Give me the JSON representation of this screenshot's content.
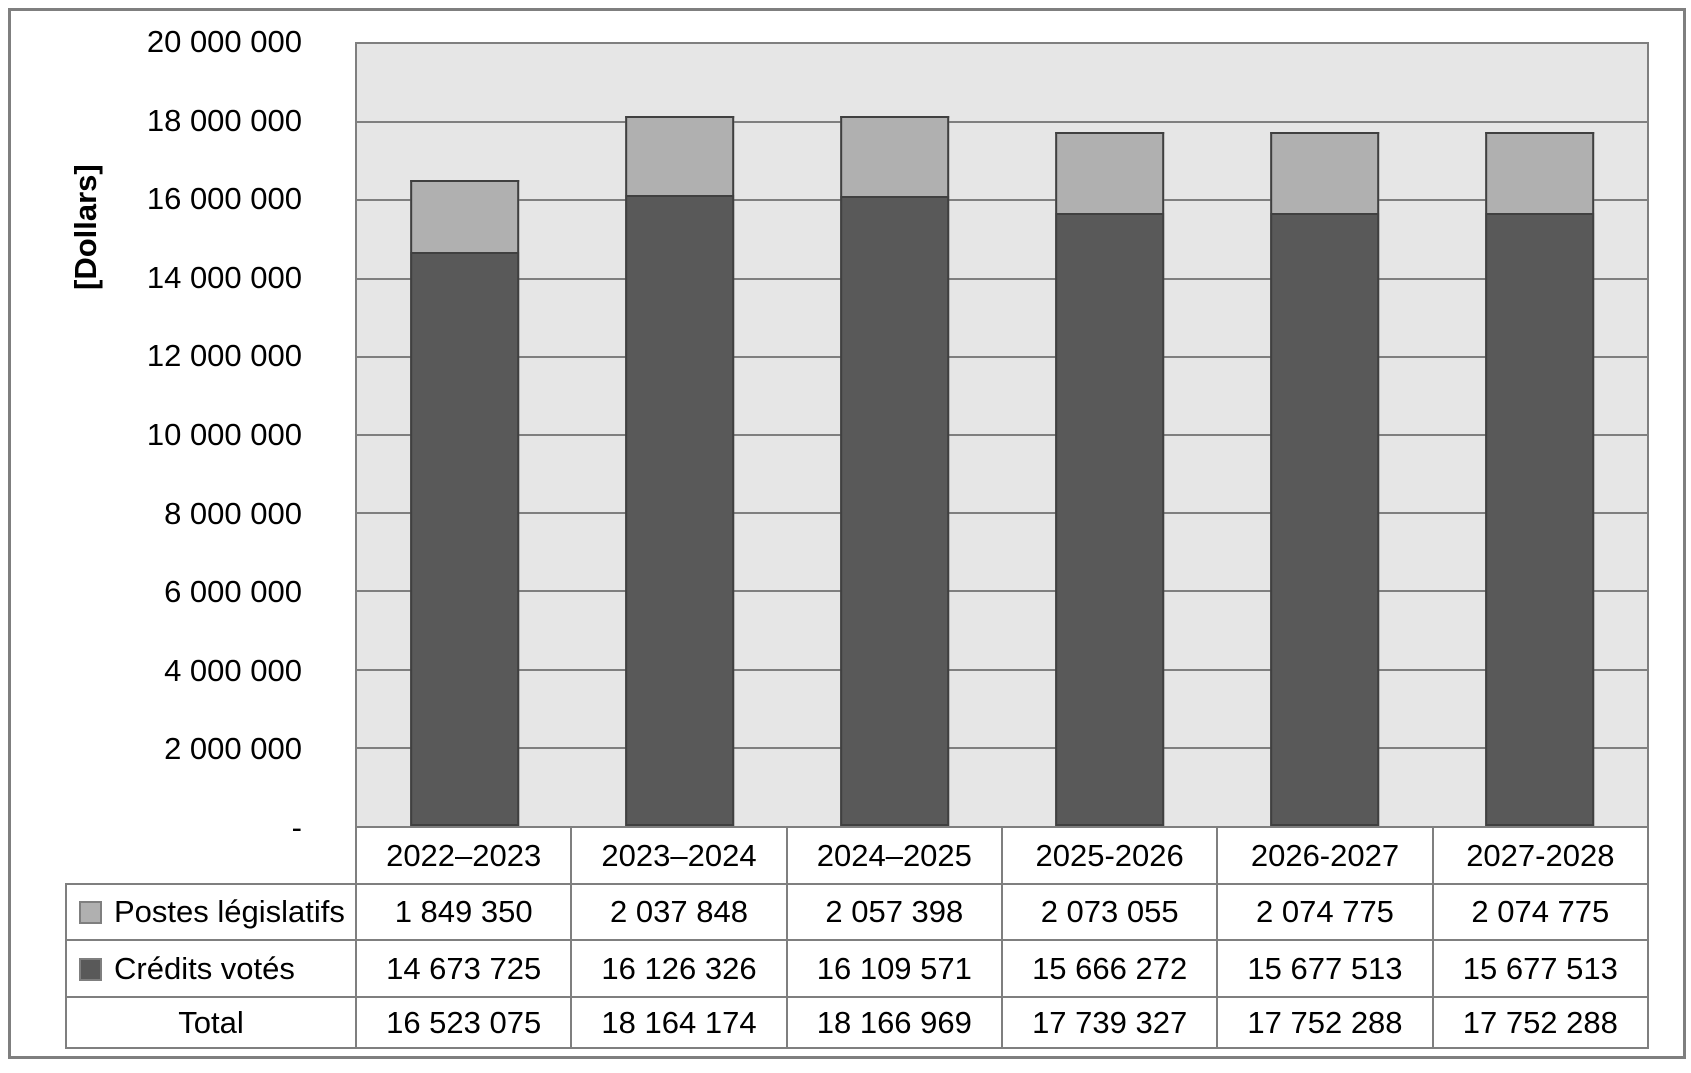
{
  "chart_data": {
    "type": "bar",
    "stacked": true,
    "title": "",
    "ylabel": "[Dollars]",
    "xlabel": "",
    "ylim": [
      0,
      20000000
    ],
    "ytick_interval": 2000000,
    "ytick_labels": [
      "20 000 000",
      "18 000 000",
      "16 000 000",
      "14 000 000",
      "12 000 000",
      "10 000 000",
      "8 000 000",
      "6 000 000",
      "4 000 000",
      "2 000 000",
      "-"
    ],
    "grid": true,
    "legend_position": "table-rows-left",
    "colors": {
      "plot_bg": "#e6e6e6",
      "gridline": "#7f7f7f",
      "bar_border": "#404040",
      "table_border": "#7f7f7f",
      "series_postes": "#b0b0b0",
      "series_credits": "#595959"
    },
    "categories": [
      "2022–2023",
      "2023–2024",
      "2024–2025",
      "2025-2026",
      "2026-2027",
      "2027-2028"
    ],
    "series": [
      {
        "name": "Postes législatifs",
        "color": "#b0b0b0",
        "stack_position": "top",
        "values": [
          1849350,
          2037848,
          2057398,
          2073055,
          2074775,
          2074775
        ],
        "values_formatted": [
          "1 849 350",
          "2 037 848",
          "2 057 398",
          "2 073 055",
          "2 074 775",
          "2 074 775"
        ]
      },
      {
        "name": "Crédits votés",
        "color": "#595959",
        "stack_position": "bottom",
        "values": [
          14673725,
          16126326,
          16109571,
          15666272,
          15677513,
          15677513
        ],
        "values_formatted": [
          "14 673 725",
          "16 126 326",
          "16 109 571",
          "15 666 272",
          "15 677 513",
          "15 677 513"
        ]
      }
    ],
    "total_row": {
      "label": "Total",
      "values": [
        16523075,
        18164174,
        18166969,
        17739327,
        17752288,
        17752288
      ],
      "values_formatted": [
        "16 523 075",
        "18 164 174",
        "18 166 969",
        "17 739 327",
        "17 752 288",
        "17 752 288"
      ]
    }
  }
}
